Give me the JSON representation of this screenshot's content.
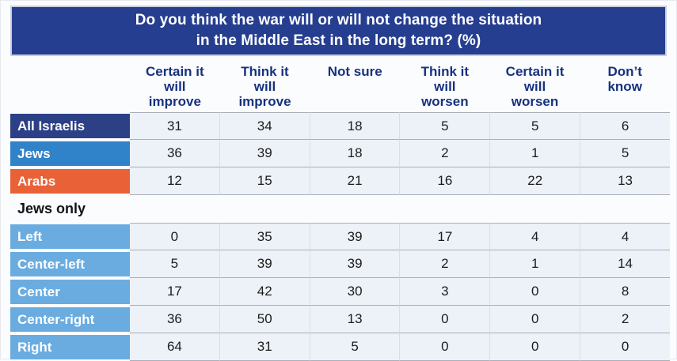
{
  "title": {
    "line1": "Do you think the war will or will not change the situation",
    "line2": "in the Middle East in the long term? (%)"
  },
  "columns": [
    "Certain it\nwill\nimprove",
    "Think it\nwill\nimprove",
    "Not sure",
    "Think it\nwill\nworsen",
    "Certain it\nwill\nworsen",
    "Don’t\nknow"
  ],
  "section_label": "Jews only",
  "colors": {
    "banner_bg": "#263e8f",
    "header_text": "#17317f",
    "all_israelis_row": "#2c4185",
    "jews_row": "#3083c8",
    "arabs_row": "#e96136",
    "political_rows": "#6aace0",
    "cell_bg": "#edf1f8"
  },
  "chart_data": {
    "type": "table",
    "title": "Do you think the war will or will not change the situation in the Middle East in the long term? (%)",
    "categories": [
      "Certain it will improve",
      "Think it will improve",
      "Not sure",
      "Think it will worsen",
      "Certain it will worsen",
      "Don’t know"
    ],
    "series": [
      {
        "name": "All Israelis",
        "values": [
          31,
          34,
          18,
          5,
          5,
          6
        ]
      },
      {
        "name": "Jews",
        "values": [
          36,
          39,
          18,
          2,
          1,
          5
        ]
      },
      {
        "name": "Arabs",
        "values": [
          12,
          15,
          21,
          16,
          22,
          13
        ]
      },
      {
        "name": "Left",
        "values": [
          0,
          35,
          39,
          17,
          4,
          4
        ]
      },
      {
        "name": "Center-left",
        "values": [
          5,
          39,
          39,
          2,
          1,
          14
        ]
      },
      {
        "name": "Center",
        "values": [
          17,
          42,
          30,
          3,
          0,
          8
        ]
      },
      {
        "name": "Center-right",
        "values": [
          36,
          50,
          13,
          0,
          0,
          2
        ]
      },
      {
        "name": "Right",
        "values": [
          64,
          31,
          5,
          0,
          0,
          0
        ]
      }
    ],
    "groups": {
      "all_respondents": [
        "All Israelis",
        "Jews",
        "Arabs"
      ],
      "jews_only": [
        "Left",
        "Center-left",
        "Center",
        "Center-right",
        "Right"
      ]
    }
  }
}
